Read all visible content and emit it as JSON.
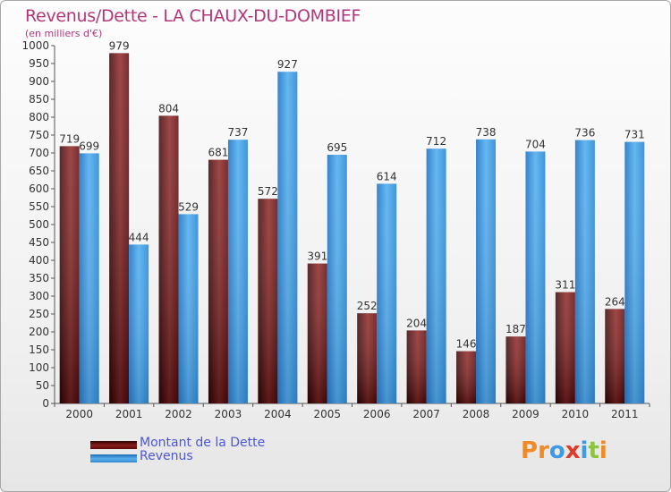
{
  "chart_data": {
    "type": "bar",
    "title": "Revenus/Dette - LA CHAUX-DU-DOMBIEF",
    "subtitle": "(en milliers d'€)",
    "categories": [
      "2000",
      "2001",
      "2002",
      "2003",
      "2004",
      "2005",
      "2006",
      "2007",
      "2008",
      "2009",
      "2010",
      "2011"
    ],
    "series": [
      {
        "name": "Montant de la Dette",
        "color": "#7a1515",
        "values": [
          719,
          979,
          804,
          681,
          572,
          391,
          252,
          204,
          146,
          187,
          311,
          264
        ]
      },
      {
        "name": "Revenus",
        "color": "#3d9be3",
        "values": [
          699,
          444,
          529,
          737,
          927,
          695,
          614,
          712,
          738,
          704,
          736,
          731
        ]
      }
    ],
    "ylim": [
      0,
      1000
    ],
    "ytick_step": 50,
    "grid": false,
    "legend_position": "bottom-left"
  },
  "logo": {
    "text": "Proxiti",
    "letters": [
      {
        "ch": "P",
        "color": "#f08a24"
      },
      {
        "ch": "r",
        "color": "#f08a24"
      },
      {
        "ch": "o",
        "color": "#3d9be3"
      },
      {
        "ch": "x",
        "color": "#e23a2a"
      },
      {
        "ch": "i",
        "color": "#3d9be3"
      },
      {
        "ch": "t",
        "color": "#8cc63f"
      },
      {
        "ch": "i",
        "color": "#f08a24"
      }
    ]
  }
}
